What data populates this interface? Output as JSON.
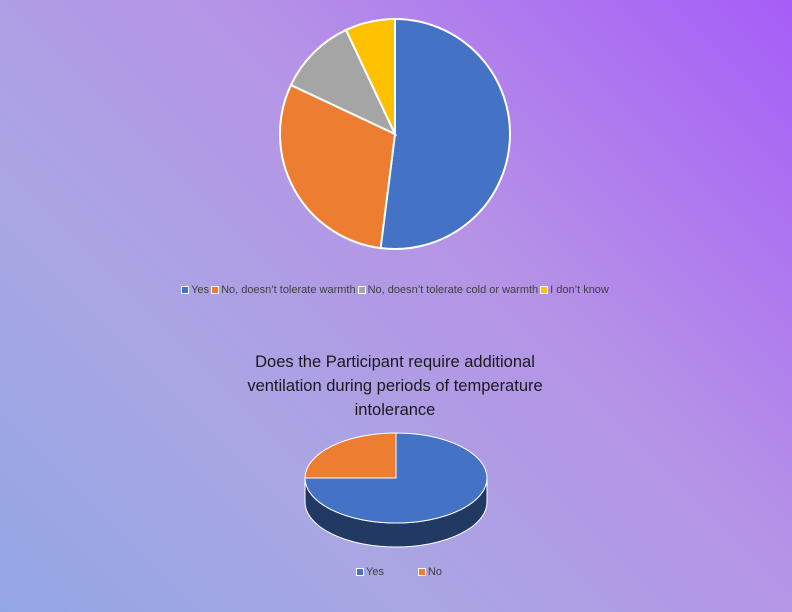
{
  "chart_data": [
    {
      "type": "pie",
      "title": "",
      "categories": [
        "Yes",
        "No, doesn't tolerate warmth",
        "No, doesn't tolerate cold or warmth",
        "I don't know"
      ],
      "values": [
        52,
        30,
        11,
        7
      ],
      "colors": [
        "#4472c4",
        "#ed7d31",
        "#a5a5a5",
        "#ffc000"
      ],
      "legend_position": "bottom",
      "legend_labels": [
        "Yes",
        "No, doesn’t tolerate warmth",
        "No, doesn’t tolerate cold or warmth",
        "I don’t know"
      ]
    },
    {
      "type": "pie",
      "style": "3d",
      "title": "Does the Participant require additional ventilation during periods of temperature intolerance",
      "categories": [
        "Yes",
        "No"
      ],
      "values": [
        75,
        25
      ],
      "colors": [
        "#4472c4",
        "#ed7d31"
      ],
      "legend_position": "bottom",
      "legend_labels": [
        "Yes",
        "No"
      ]
    }
  ]
}
